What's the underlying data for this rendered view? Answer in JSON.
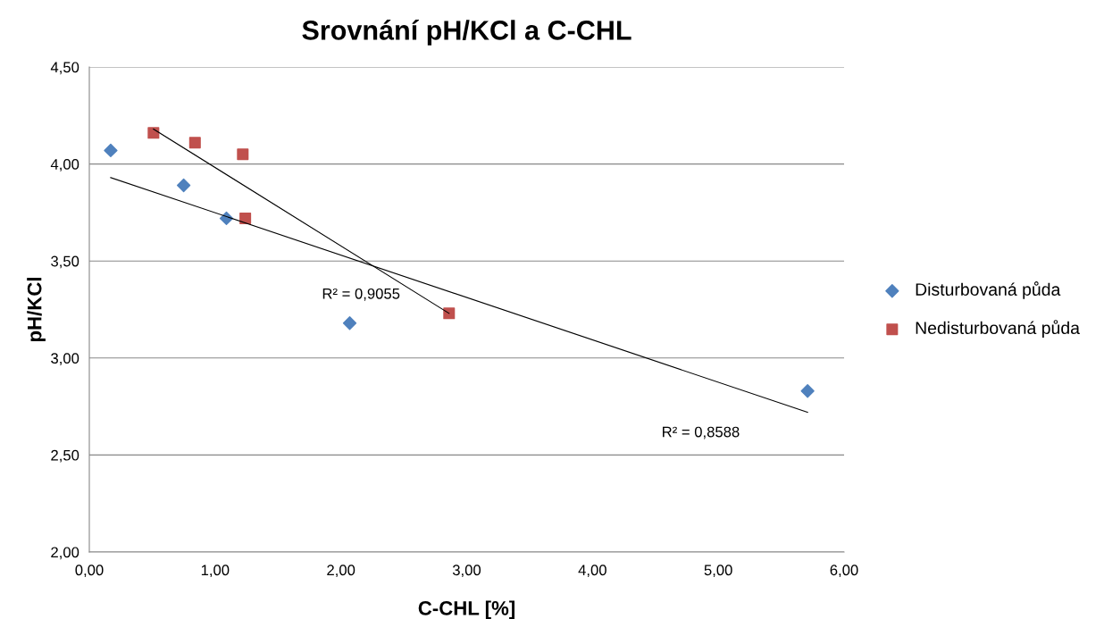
{
  "chart_data": {
    "type": "scatter",
    "title": "Srovnání pH/KCl a C-CHL",
    "xlabel": "C-CHL [%]",
    "ylabel": "pH/KCl",
    "xlim": [
      0,
      6
    ],
    "ylim": [
      2,
      4.5
    ],
    "xticks": [
      {
        "value": 0,
        "label": "0,00"
      },
      {
        "value": 1,
        "label": "1,00"
      },
      {
        "value": 2,
        "label": "2,00"
      },
      {
        "value": 3,
        "label": "3,00"
      },
      {
        "value": 4,
        "label": "4,00"
      },
      {
        "value": 5,
        "label": "5,00"
      },
      {
        "value": 6,
        "label": "6,00"
      }
    ],
    "yticks": [
      {
        "value": 2,
        "label": "2,00"
      },
      {
        "value": 2.5,
        "label": "2,50"
      },
      {
        "value": 3,
        "label": "3,00"
      },
      {
        "value": 3.5,
        "label": "3,50"
      },
      {
        "value": 4,
        "label": "4,00"
      },
      {
        "value": 4.5,
        "label": "4,50"
      }
    ],
    "grid": "y",
    "legend": "right",
    "series": [
      {
        "name": "Disturbovaná půda",
        "color": "#4f81bd",
        "marker": "diamond",
        "x": [
          0.17,
          0.75,
          1.09,
          2.07,
          5.71
        ],
        "values": [
          4.07,
          3.89,
          3.72,
          3.18,
          2.83
        ]
      },
      {
        "name": "Nedisturbovaná půda",
        "color": "#c0504d",
        "marker": "square",
        "x": [
          0.51,
          0.84,
          1.22,
          1.24,
          2.86
        ],
        "values": [
          4.16,
          4.11,
          4.05,
          3.72,
          3.23
        ]
      },
      {
        "type": "line",
        "color": "#000000",
        "marker": "none",
        "x": [
          0.17,
          5.71
        ],
        "values": [
          3.93,
          2.72
        ]
      },
      {
        "type": "line",
        "color": "#000000",
        "marker": "none",
        "x": [
          0.51,
          2.86
        ],
        "values": [
          4.18,
          3.23
        ]
      }
    ],
    "annotations": [
      "R² = 0,9055",
      "R² = 0,8588"
    ]
  }
}
